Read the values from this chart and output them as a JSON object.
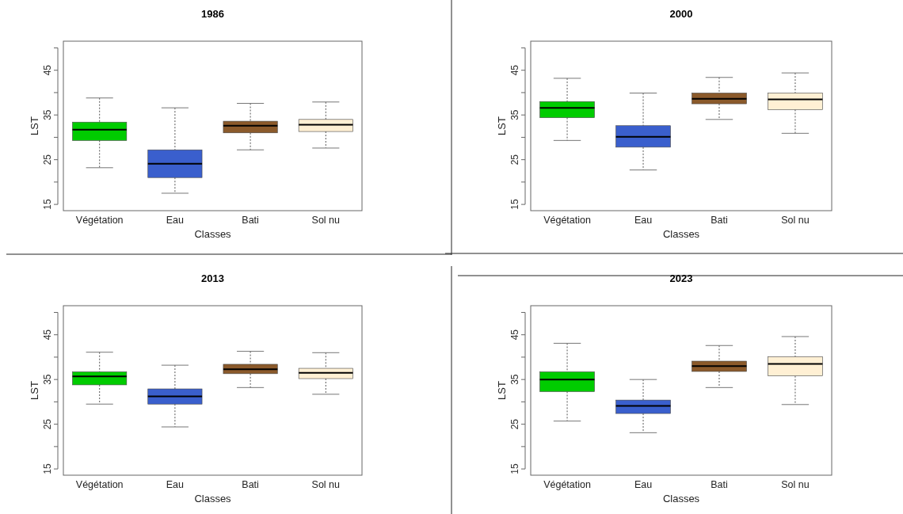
{
  "chart_data": [
    {
      "type": "box",
      "title": "1986",
      "xlabel": "Classes",
      "ylabel": "LST",
      "categories": [
        "Végétation",
        "Eau",
        "Bati",
        "Sol nu"
      ],
      "colors": [
        "#00cc00",
        "#3a5fcd",
        "#8b5a2b",
        "#fff0d4"
      ],
      "ylim": [
        13.6,
        51.5
      ],
      "yticks": [
        15,
        {
          "value": 20,
          "label": null
        },
        25,
        {
          "value": 30,
          "label": null
        },
        35,
        {
          "value": 40,
          "label": null
        },
        45,
        {
          "value": 50,
          "label": null
        }
      ],
      "boxes": [
        {
          "low": 23.2,
          "q1": 29.3,
          "median": 31.7,
          "q3": 33.4,
          "high": 38.8
        },
        {
          "low": 17.5,
          "q1": 21.0,
          "median": 24.1,
          "q3": 27.2,
          "high": 36.6
        },
        {
          "low": 27.2,
          "q1": 31.0,
          "median": 32.6,
          "q3": 33.6,
          "high": 37.6
        },
        {
          "low": 27.6,
          "q1": 31.3,
          "median": 32.8,
          "q3": 34.0,
          "high": 37.9
        }
      ]
    },
    {
      "type": "box",
      "title": "2000",
      "xlabel": "Classes",
      "ylabel": "LST",
      "categories": [
        "Végétation",
        "Eau",
        "Bati",
        "Sol nu"
      ],
      "colors": [
        "#00cc00",
        "#3a5fcd",
        "#8b5a2b",
        "#fff0d4"
      ],
      "ylim": [
        13.6,
        51.5
      ],
      "yticks": [
        15,
        {
          "value": 20,
          "label": null
        },
        25,
        {
          "value": 30,
          "label": null
        },
        35,
        {
          "value": 40,
          "label": null
        },
        45,
        {
          "value": 50,
          "label": null
        }
      ],
      "boxes": [
        {
          "low": 29.3,
          "q1": 34.4,
          "median": 36.6,
          "q3": 38.0,
          "high": 43.2
        },
        {
          "low": 22.7,
          "q1": 27.8,
          "median": 30.1,
          "q3": 32.6,
          "high": 39.9
        },
        {
          "low": 34.0,
          "q1": 37.5,
          "median": 38.6,
          "q3": 39.9,
          "high": 43.4
        },
        {
          "low": 30.9,
          "q1": 36.2,
          "median": 38.5,
          "q3": 39.9,
          "high": 44.4
        }
      ]
    },
    {
      "type": "box",
      "title": "2013",
      "xlabel": "Classes",
      "ylabel": "LST",
      "categories": [
        "Végétation",
        "Eau",
        "Bati",
        "Sol nu"
      ],
      "colors": [
        "#00cc00",
        "#3a5fcd",
        "#8b5a2b",
        "#fff0d4"
      ],
      "ylim": [
        13.6,
        51.5
      ],
      "yticks": [
        15,
        {
          "value": 20,
          "label": null
        },
        25,
        {
          "value": 30,
          "label": null
        },
        35,
        {
          "value": 40,
          "label": null
        },
        45,
        {
          "value": 50,
          "label": null
        }
      ],
      "boxes": [
        {
          "low": 29.5,
          "q1": 33.8,
          "median": 35.7,
          "q3": 36.7,
          "high": 41.1
        },
        {
          "low": 24.4,
          "q1": 29.5,
          "median": 31.2,
          "q3": 32.9,
          "high": 38.2
        },
        {
          "low": 33.2,
          "q1": 36.3,
          "median": 37.3,
          "q3": 38.4,
          "high": 41.3
        },
        {
          "low": 31.7,
          "q1": 35.2,
          "median": 36.5,
          "q3": 37.5,
          "high": 41.0
        }
      ]
    },
    {
      "type": "box",
      "title": "2023",
      "xlabel": "Classes",
      "ylabel": "LST",
      "categories": [
        "Végétation",
        "Eau",
        "Bati",
        "Sol nu"
      ],
      "colors": [
        "#00cc00",
        "#3a5fcd",
        "#8b5a2b",
        "#fff0d4"
      ],
      "ylim": [
        13.6,
        51.5
      ],
      "yticks": [
        15,
        {
          "value": 20,
          "label": null
        },
        25,
        {
          "value": 30,
          "label": null
        },
        35,
        {
          "value": 40,
          "label": null
        },
        45,
        {
          "value": 50,
          "label": null
        }
      ],
      "boxes": [
        {
          "low": 25.7,
          "q1": 32.3,
          "median": 35.0,
          "q3": 36.7,
          "high": 43.1
        },
        {
          "low": 23.1,
          "q1": 27.4,
          "median": 29.1,
          "q3": 30.4,
          "high": 35.0
        },
        {
          "low": 33.2,
          "q1": 36.8,
          "median": 38.0,
          "q3": 39.1,
          "high": 42.6
        },
        {
          "low": 29.4,
          "q1": 35.8,
          "median": 38.5,
          "q3": 40.1,
          "high": 44.6
        }
      ]
    }
  ]
}
